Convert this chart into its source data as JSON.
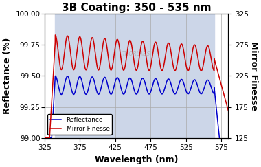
{
  "title": "3B Coating: 350 - 535 nm",
  "xlabel": "Wavelength (nm)",
  "ylabel_left": "Reflectance (%)",
  "ylabel_right": "Mirror Finesse",
  "xlim": [
    325,
    585
  ],
  "ylim_left": [
    99.0,
    100.0
  ],
  "ylim_right": [
    125,
    325
  ],
  "xticks": [
    325,
    375,
    425,
    475,
    525,
    575
  ],
  "yticks_left": [
    99.0,
    99.25,
    99.5,
    99.75,
    100.0
  ],
  "yticks_right": [
    125,
    175,
    225,
    275,
    325
  ],
  "shaded_region": [
    340,
    565
  ],
  "shade_color": "#ccd6e8",
  "reflectance_color": "#0000cc",
  "finesse_color": "#cc0000",
  "grid_color": "#aaaaaa",
  "bg_color": "#ffffff",
  "watermark": "THORLABS",
  "watermark_color": "#b0b0b0",
  "legend_loc": "lower left",
  "title_fontsize": 11,
  "label_fontsize": 9,
  "tick_fontsize": 7.5,
  "line_width": 1.1
}
